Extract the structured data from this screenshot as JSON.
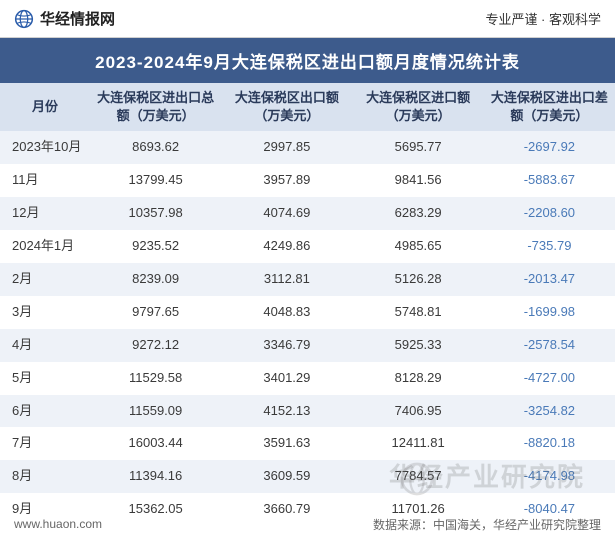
{
  "header": {
    "site_name": "华经情报网",
    "tagline": "专业严谨  ·  客观科学",
    "logo_color": "#2a5caa"
  },
  "title": {
    "text": "2023-2024年9月大连保税区进出口额月度情况统计表",
    "bg_color": "#3d5b8c",
    "text_color": "#ffffff"
  },
  "table": {
    "header_bg": "#d9e2ef",
    "header_text_color": "#2a3a5a",
    "row_alt_bg": "#eef2f8",
    "row_bg": "#ffffff",
    "text_color": "#3a3a3a",
    "neg_color": "#4a7ab8",
    "columns": [
      "月份",
      "大连保税区进出口总额（万美元）",
      "大连保税区出口额（万美元）",
      "大连保税区进口额（万美元）",
      "大连保税区进出口差额（万美元）"
    ],
    "rows": [
      {
        "month": "2023年10月",
        "total": "8693.62",
        "export": "2997.85",
        "import": "5695.77",
        "diff": "-2697.92"
      },
      {
        "month": "11月",
        "total": "13799.45",
        "export": "3957.89",
        "import": "9841.56",
        "diff": "-5883.67"
      },
      {
        "month": "12月",
        "total": "10357.98",
        "export": "4074.69",
        "import": "6283.29",
        "diff": "-2208.60"
      },
      {
        "month": "2024年1月",
        "total": "9235.52",
        "export": "4249.86",
        "import": "4985.65",
        "diff": "-735.79"
      },
      {
        "month": "2月",
        "total": "8239.09",
        "export": "3112.81",
        "import": "5126.28",
        "diff": "-2013.47"
      },
      {
        "month": "3月",
        "total": "9797.65",
        "export": "4048.83",
        "import": "5748.81",
        "diff": "-1699.98"
      },
      {
        "month": "4月",
        "total": "9272.12",
        "export": "3346.79",
        "import": "5925.33",
        "diff": "-2578.54"
      },
      {
        "month": "5月",
        "total": "11529.58",
        "export": "3401.29",
        "import": "8128.29",
        "diff": "-4727.00"
      },
      {
        "month": "6月",
        "total": "11559.09",
        "export": "4152.13",
        "import": "7406.95",
        "diff": "-3254.82"
      },
      {
        "month": "7月",
        "total": "16003.44",
        "export": "3591.63",
        "import": "12411.81",
        "diff": "-8820.18"
      },
      {
        "month": "8月",
        "total": "11394.16",
        "export": "3609.59",
        "import": "7784.57",
        "diff": "-4174.98"
      },
      {
        "month": "9月",
        "total": "15362.05",
        "export": "3660.79",
        "import": "11701.26",
        "diff": "-8040.47"
      }
    ]
  },
  "footer": {
    "site_url": "www.huaon.com",
    "source": "数据来源：中国海关，华经产业研究院整理"
  },
  "watermark": {
    "text": "华经产业研究院"
  }
}
